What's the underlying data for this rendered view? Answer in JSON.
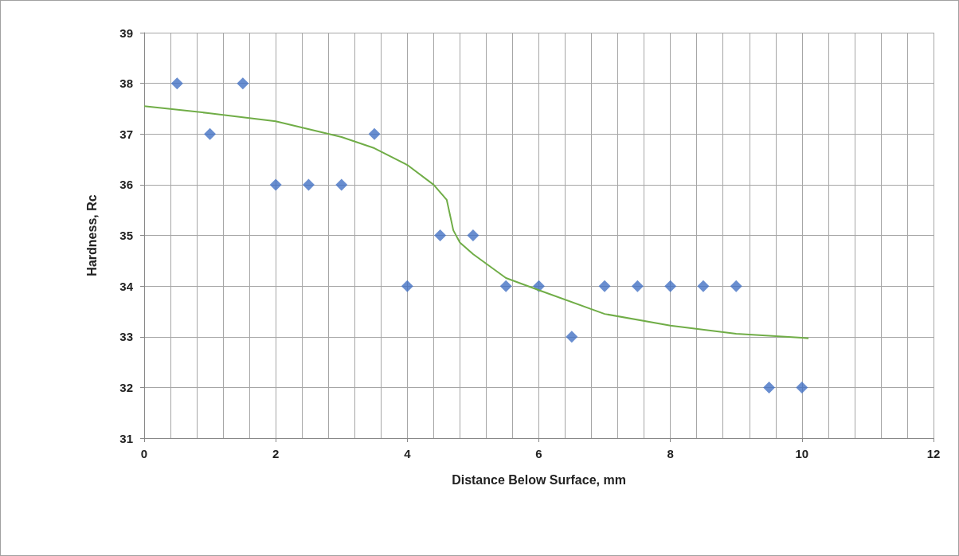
{
  "chart_data": {
    "type": "scatter",
    "xlabel": "Distance Below Surface, mm",
    "ylabel": "Hardness, Rc",
    "xlim": [
      0,
      12
    ],
    "xticks": [
      0,
      2,
      4,
      6,
      8,
      10,
      12
    ],
    "ylim": [
      31,
      39
    ],
    "yticks": [
      31,
      32,
      33,
      34,
      35,
      36,
      37,
      38,
      39
    ],
    "grid": true,
    "marker": "diamond",
    "series": [
      {
        "color": "#4472c4",
        "x": [
          0.5,
          1,
          1.5,
          2,
          2.5,
          3,
          3.5,
          4,
          4.5,
          5,
          5.5,
          6,
          6.5,
          7,
          7.5,
          8,
          8.5,
          9,
          9.5,
          10
        ],
        "values": [
          38,
          37,
          38,
          36,
          36,
          36,
          37,
          34,
          35,
          35,
          34,
          34,
          33,
          34,
          34,
          34,
          34,
          34,
          32,
          32
        ]
      },
      {
        "type": "line",
        "color": "#70ad47",
        "marker": "none",
        "line_style": "solid",
        "x": [
          0,
          1,
          2,
          3,
          3.5,
          4,
          4.4,
          4.6,
          4.7,
          4.8,
          5,
          5.5,
          6,
          7,
          8,
          9,
          10,
          10.1
        ],
        "values": [
          37.55,
          37.41,
          37.25,
          36.94,
          36.72,
          36.39,
          36.0,
          35.7,
          35.1,
          34.86,
          34.63,
          34.16,
          33.92,
          33.45,
          33.22,
          33.06,
          32.98,
          32.97
        ]
      }
    ]
  }
}
